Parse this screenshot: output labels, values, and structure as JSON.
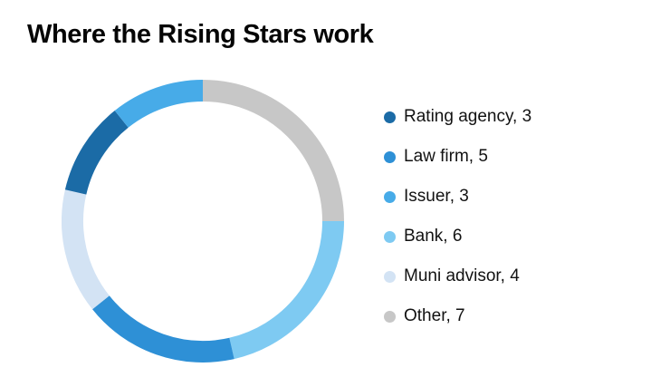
{
  "title": "Where the Rising Stars work",
  "chart_data": {
    "type": "pie",
    "subtype": "donut",
    "title": "Where the Rising Stars work",
    "total": 28,
    "legend_position": "right",
    "series": [
      {
        "label": "Rating agency",
        "value": 3,
        "color": "#1b6ba6",
        "display": "Rating agency, 3"
      },
      {
        "label": "Law firm",
        "value": 5,
        "color": "#2e90d6",
        "display": "Law firm, 5"
      },
      {
        "label": "Issuer",
        "value": 3,
        "color": "#47abe8",
        "display": "Issuer, 3"
      },
      {
        "label": "Bank",
        "value": 6,
        "color": "#7ecaf2",
        "display": "Bank, 6"
      },
      {
        "label": "Muni advisor",
        "value": 4,
        "color": "#d3e3f4",
        "display": "Muni advisor, 4"
      },
      {
        "label": "Other",
        "value": 7,
        "color": "#c7c7c7",
        "display": "Other, 7"
      }
    ],
    "plot": {
      "order": [
        5,
        3,
        1,
        4,
        0,
        2
      ],
      "start_angle_deg": 0,
      "direction": "clockwise",
      "ring_thickness_ratio": 0.155
    }
  }
}
